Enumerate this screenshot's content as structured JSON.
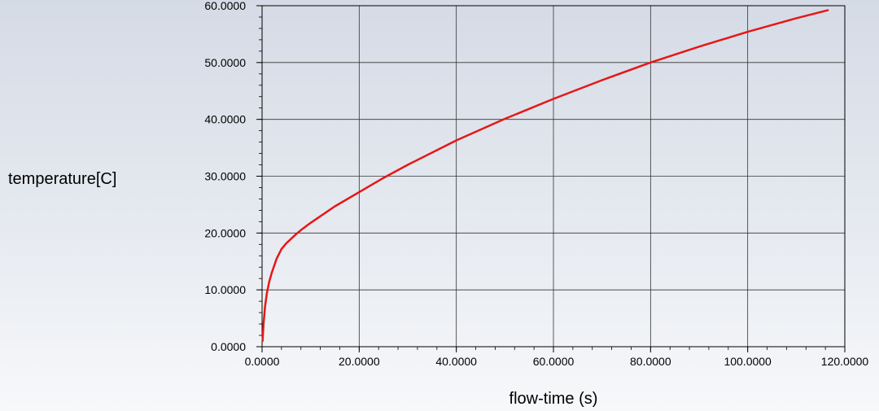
{
  "chart_data": {
    "type": "line",
    "title": "",
    "xlabel": "flow-time (s)",
    "ylabel": "temperature[C]",
    "xlim": [
      0,
      120
    ],
    "ylim": [
      0,
      60
    ],
    "x_ticks": [
      "0.0000",
      "20.0000",
      "40.0000",
      "60.0000",
      "80.0000",
      "100.0000",
      "120.0000"
    ],
    "y_ticks": [
      "0.0000",
      "10.0000",
      "20.0000",
      "30.0000",
      "40.0000",
      "50.0000",
      "60.0000"
    ],
    "x_minor_per_major": 5,
    "y_minor_per_major": 5,
    "grid": true,
    "legend": "none",
    "line_color": "#e61717",
    "series": [
      {
        "x": [
          0.1,
          0.3,
          0.6,
          1,
          1.5,
          2,
          3,
          4,
          5,
          6,
          7,
          8,
          10,
          15,
          20,
          25,
          30,
          40,
          50,
          60,
          70,
          80,
          90,
          100,
          110,
          116.5
        ],
        "values": [
          1.0,
          4.0,
          7.0,
          9.5,
          11.5,
          13.0,
          15.5,
          17.2,
          18.2,
          19.0,
          19.8,
          20.5,
          21.8,
          24.7,
          27.2,
          29.7,
          32.0,
          36.3,
          40.1,
          43.6,
          46.9,
          50.0,
          52.8,
          55.4,
          57.8,
          59.2
        ]
      }
    ]
  }
}
